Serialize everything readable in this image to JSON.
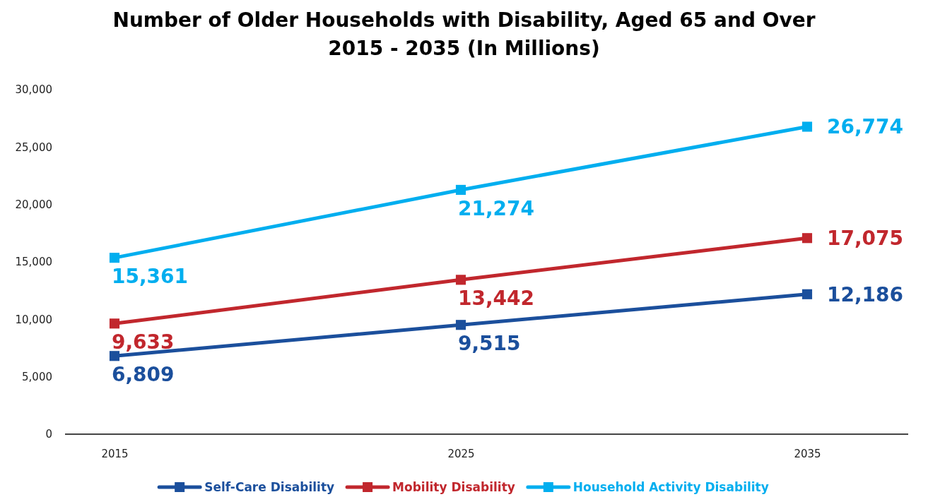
{
  "chart_data": {
    "type": "line",
    "title": "Number of Older Households with Disability, Aged 65 and Over",
    "subtitle": "2015 - 2035 (In Millions)",
    "categories": [
      "2015",
      "2025",
      "2035"
    ],
    "series": [
      {
        "name": "Self-Care Disability",
        "color": "#1b4f9c",
        "values": [
          6809,
          9515,
          12186
        ],
        "value_labels": [
          "6,809",
          "9,515",
          "12,186"
        ]
      },
      {
        "name": "Mobility Disability",
        "color": "#c1272d",
        "values": [
          9633,
          13442,
          17075
        ],
        "value_labels": [
          "9,633",
          "13,442",
          "17,075"
        ]
      },
      {
        "name": "Household Activity Disability",
        "color": "#00aeef",
        "values": [
          15361,
          21274,
          26774
        ],
        "value_labels": [
          "15,361",
          "21,274",
          "26,774"
        ]
      }
    ],
    "ylim": [
      0,
      30000
    ],
    "yticks": [
      {
        "value": 0,
        "label": "0"
      },
      {
        "value": 5000,
        "label": "5,000"
      },
      {
        "value": 10000,
        "label": "10,000"
      },
      {
        "value": 15000,
        "label": "15,000"
      },
      {
        "value": 20000,
        "label": "20,000"
      },
      {
        "value": 25000,
        "label": "25,000"
      },
      {
        "value": 30000,
        "label": "30,000"
      }
    ],
    "grid": false,
    "legend": "bottom",
    "marker": "square",
    "line_style": "solid"
  }
}
